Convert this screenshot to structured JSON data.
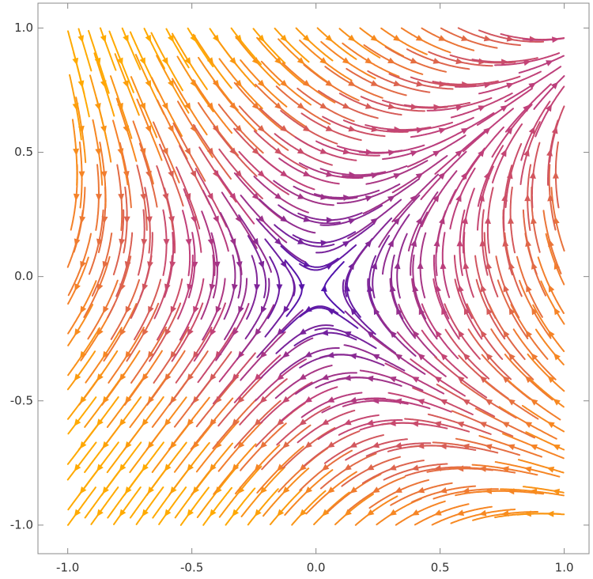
{
  "chart_data": {
    "type": "stream",
    "xlim": [
      -1.12,
      1.1
    ],
    "ylim": [
      -1.115,
      1.1
    ],
    "xticks": [
      {
        "value": -1,
        "label": "-1.0"
      },
      -0.5,
      {
        "value": 0,
        "label": "0.0"
      },
      0.5,
      {
        "value": 1,
        "label": "1.0"
      }
    ],
    "yticks": [
      {
        "value": -1,
        "label": "-1.0"
      },
      -0.5,
      {
        "value": 0,
        "label": "0.0"
      },
      0.5,
      {
        "value": 1,
        "label": "1.0"
      }
    ]
  }
}
